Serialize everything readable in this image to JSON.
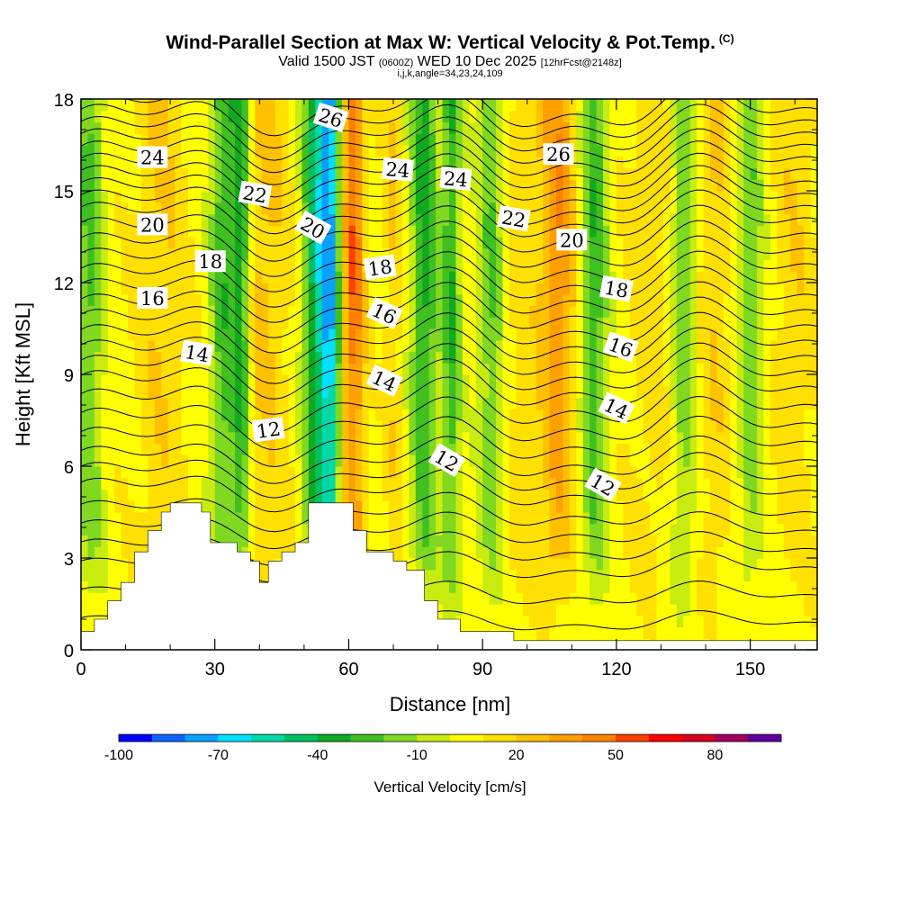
{
  "chart_data": {
    "type": "heatmap",
    "title": "Wind-Parallel Section at Max W: Vertical Velocity & Pot.Temp.",
    "copyright": "(C)",
    "subtitle_main": "Valid 1500 JST",
    "subtitle_utc": "(0600Z)",
    "subtitle_date": "WED 10 Dec 2025",
    "subtitle_run": "[12hrFcst@2148z]",
    "info": "i,j,k,angle=34,23,24,109",
    "xlabel": "Distance [nm]",
    "ylabel": "Height [Kft MSL]",
    "xlim": [
      0,
      165
    ],
    "ylim": [
      0,
      18
    ],
    "xticks": [
      "0",
      "30",
      "60",
      "90",
      "120",
      "150"
    ],
    "yticks": [
      "0",
      "3",
      "6",
      "9",
      "12",
      "15",
      "18"
    ],
    "colorbar": {
      "label": "Vertical Velocity [cm/s]",
      "range": [
        -100,
        100
      ],
      "tick_labels": [
        "-100",
        "-70",
        "-40",
        "-10",
        "20",
        "50",
        "80"
      ],
      "colors": [
        "#0000ff",
        "#0a64ff",
        "#0aa0ff",
        "#00e0ff",
        "#00d8a8",
        "#00c060",
        "#10aa20",
        "#40c020",
        "#80d820",
        "#c8ec10",
        "#ffff00",
        "#ffe000",
        "#ffc000",
        "#ffa000",
        "#ff8000",
        "#ff4000",
        "#ff0000",
        "#d80020",
        "#a00060",
        "#6000a0"
      ]
    },
    "updraft_bands": [
      {
        "x": 18,
        "width": 6,
        "peak": 14
      },
      {
        "x": 38,
        "width": 4,
        "peak": 6
      },
      {
        "x": 42,
        "width": 5,
        "peak": 14
      },
      {
        "x": 61,
        "width": 2.5,
        "peak": 42
      },
      {
        "x": 70,
        "width": 2,
        "peak": 14
      },
      {
        "x": 98,
        "width": 5,
        "peak": 10
      },
      {
        "x": 107,
        "width": 4,
        "peak": 32
      },
      {
        "x": 128,
        "width": 6,
        "peak": 10
      },
      {
        "x": 142,
        "width": 4,
        "peak": 14
      },
      {
        "x": 160,
        "width": 5,
        "peak": 12
      }
    ],
    "downdraft_bands": [
      {
        "x": 2,
        "width": 3,
        "peak": -28
      },
      {
        "x": 32,
        "width": 3,
        "peak": -34
      },
      {
        "x": 36,
        "width": 2,
        "peak": -42
      },
      {
        "x": 53,
        "width": 3,
        "peak": -56
      },
      {
        "x": 56,
        "width": 2,
        "peak": -62
      },
      {
        "x": 77,
        "width": 3,
        "peak": -40
      },
      {
        "x": 83,
        "width": 2,
        "peak": -36
      },
      {
        "x": 92,
        "width": 3,
        "peak": -28
      },
      {
        "x": 115,
        "width": 3,
        "peak": -34
      },
      {
        "x": 135,
        "width": 3,
        "peak": -26
      },
      {
        "x": 150,
        "width": 3,
        "peak": -24
      }
    ],
    "isentropes": {
      "levels_kft": [
        0.9,
        1.8,
        2.7,
        3.3,
        3.9,
        4.5,
        5.2,
        5.7,
        6.2,
        6.8,
        7.4,
        8.0,
        8.6,
        9.1,
        9.6,
        10.1,
        10.6,
        11.1,
        11.6,
        12.1,
        12.6,
        13.1,
        13.6,
        14.1,
        14.5,
        14.9,
        15.3,
        15.7,
        16.1,
        16.5,
        16.9,
        17.3,
        17.7
      ],
      "wave_amplitude_kft": 0.8,
      "labels": [
        {
          "text": "24",
          "x": 16,
          "y": 16.1,
          "angle": 0
        },
        {
          "text": "20",
          "x": 16,
          "y": 13.9,
          "angle": 0
        },
        {
          "text": "18",
          "x": 29,
          "y": 12.7,
          "angle": 0
        },
        {
          "text": "16",
          "x": 16,
          "y": 11.5,
          "angle": 0
        },
        {
          "text": "14",
          "x": 26,
          "y": 9.7,
          "angle": 10
        },
        {
          "text": "12",
          "x": 42,
          "y": 7.2,
          "angle": -8
        },
        {
          "text": "22",
          "x": 39,
          "y": 14.9,
          "angle": 10
        },
        {
          "text": "26",
          "x": 56,
          "y": 17.4,
          "angle": 18
        },
        {
          "text": "20",
          "x": 52,
          "y": 13.8,
          "angle": 30
        },
        {
          "text": "18",
          "x": 67,
          "y": 12.5,
          "angle": -8
        },
        {
          "text": "16",
          "x": 68,
          "y": 11.0,
          "angle": 25
        },
        {
          "text": "14",
          "x": 68,
          "y": 8.8,
          "angle": 25
        },
        {
          "text": "24",
          "x": 71,
          "y": 15.7,
          "angle": 5
        },
        {
          "text": "24",
          "x": 84,
          "y": 15.4,
          "angle": 5
        },
        {
          "text": "12",
          "x": 82,
          "y": 6.2,
          "angle": 30
        },
        {
          "text": "22",
          "x": 97,
          "y": 14.1,
          "angle": 10
        },
        {
          "text": "26",
          "x": 107,
          "y": 16.2,
          "angle": 0
        },
        {
          "text": "20",
          "x": 110,
          "y": 13.4,
          "angle": 0
        },
        {
          "text": "18",
          "x": 120,
          "y": 11.8,
          "angle": 10
        },
        {
          "text": "16",
          "x": 121,
          "y": 9.9,
          "angle": 20
        },
        {
          "text": "14",
          "x": 120,
          "y": 7.9,
          "angle": 25
        },
        {
          "text": "12",
          "x": 117,
          "y": 5.4,
          "angle": 30
        }
      ]
    },
    "terrain": [
      [
        0,
        0.6
      ],
      [
        3,
        0.6
      ],
      [
        3,
        1.0
      ],
      [
        6,
        1.0
      ],
      [
        6,
        1.6
      ],
      [
        9,
        1.6
      ],
      [
        9,
        2.2
      ],
      [
        12,
        2.2
      ],
      [
        12,
        3.2
      ],
      [
        15,
        3.2
      ],
      [
        15,
        3.9
      ],
      [
        18,
        3.9
      ],
      [
        18,
        4.5
      ],
      [
        20,
        4.5
      ],
      [
        20,
        4.8
      ],
      [
        27,
        4.8
      ],
      [
        27,
        4.5
      ],
      [
        29,
        4.5
      ],
      [
        29,
        3.5
      ],
      [
        35,
        3.5
      ],
      [
        35,
        3.2
      ],
      [
        38,
        3.2
      ],
      [
        38,
        2.9
      ],
      [
        40,
        2.9
      ],
      [
        40,
        2.2
      ],
      [
        42,
        2.2
      ],
      [
        42,
        2.9
      ],
      [
        45,
        2.9
      ],
      [
        45,
        3.2
      ],
      [
        48,
        3.2
      ],
      [
        48,
        3.5
      ],
      [
        51,
        3.5
      ],
      [
        51,
        4.8
      ],
      [
        61,
        4.8
      ],
      [
        61,
        3.9
      ],
      [
        64,
        3.9
      ],
      [
        64,
        3.2
      ],
      [
        70,
        3.2
      ],
      [
        70,
        2.9
      ],
      [
        73,
        2.9
      ],
      [
        73,
        2.6
      ],
      [
        77,
        2.6
      ],
      [
        77,
        1.6
      ],
      [
        80,
        1.6
      ],
      [
        80,
        1.0
      ],
      [
        85,
        1.0
      ],
      [
        85,
        0.6
      ],
      [
        97,
        0.6
      ],
      [
        97,
        0.3
      ],
      [
        165,
        0.3
      ],
      [
        165,
        0
      ],
      [
        0,
        0
      ]
    ]
  }
}
